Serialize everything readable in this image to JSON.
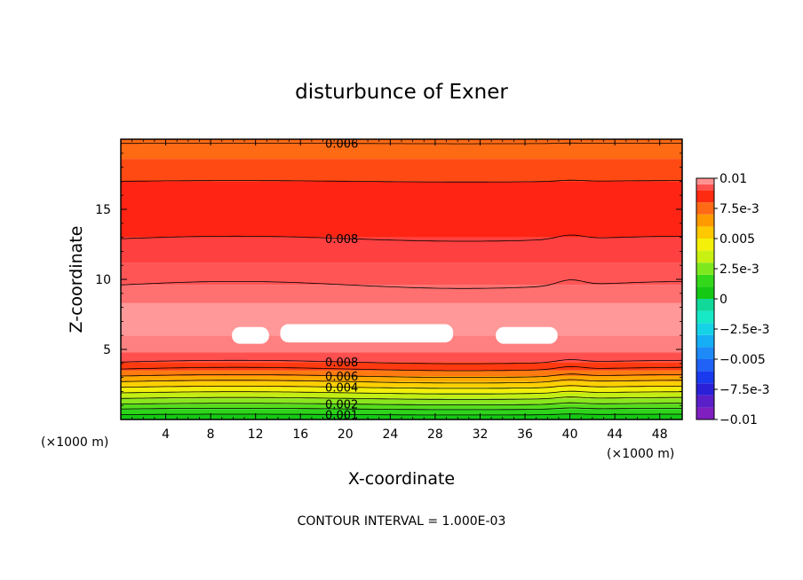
{
  "chart_data": {
    "type": "heatmap",
    "title": "disturbunce of Exner",
    "xlabel": "X-coordinate",
    "ylabel": "Z-coordinate",
    "x_unit": "(×1000 m)",
    "y_unit": "(×1000 m)",
    "xlim": [
      0,
      50
    ],
    "ylim": [
      0,
      20
    ],
    "x_ticks": [
      "4",
      "8",
      "12",
      "16",
      "20",
      "24",
      "28",
      "32",
      "36",
      "40",
      "44",
      "48"
    ],
    "y_ticks": [
      "5",
      "10",
      "15"
    ],
    "footer": "CONTOUR INTERVAL = 1.000E-03",
    "colorbar": {
      "ticks": [
        "0.01",
        "7.5e-3",
        "0.005",
        "2.5e-3",
        "0",
        "−2.5e-3",
        "−0.005",
        "−7.5e-3",
        "−0.01"
      ],
      "levels": [
        {
          "min": -0.01,
          "color": "#7f1fbf"
        },
        {
          "min": -0.009,
          "color": "#5a1fc8"
        },
        {
          "min": -0.008,
          "color": "#2a20d8"
        },
        {
          "min": -0.007,
          "color": "#1a3aee"
        },
        {
          "min": -0.006,
          "color": "#1f62f5"
        },
        {
          "min": -0.005,
          "color": "#1e8af7"
        },
        {
          "min": -0.004,
          "color": "#16aef5"
        },
        {
          "min": -0.003,
          "color": "#15d2e6"
        },
        {
          "min": -0.002,
          "color": "#17e8c6"
        },
        {
          "min": -0.001,
          "color": "#10d99a"
        },
        {
          "min": 0.0,
          "color": "#14c814"
        },
        {
          "min": 0.001,
          "color": "#34d81a"
        },
        {
          "min": 0.002,
          "color": "#7ee81e"
        },
        {
          "min": 0.003,
          "color": "#c8f012"
        },
        {
          "min": 0.004,
          "color": "#f5f00a"
        },
        {
          "min": 0.005,
          "color": "#ffc800"
        },
        {
          "min": 0.006,
          "color": "#ff9a00"
        },
        {
          "min": 0.007,
          "color": "#ff6a14"
        },
        {
          "min": 0.008,
          "color": "#ff2b10"
        },
        {
          "min": 0.009,
          "color": "#ff5050"
        },
        {
          "min": 0.0095,
          "color": "#ff9090"
        }
      ]
    },
    "bands": [
      {
        "z0": 0.0,
        "z1": 0.35,
        "color": "#14c814"
      },
      {
        "z0": 0.35,
        "z1": 0.75,
        "color": "#2ed41a"
      },
      {
        "z0": 0.75,
        "z1": 1.1,
        "color": "#55dd1c"
      },
      {
        "z0": 1.1,
        "z1": 1.5,
        "color": "#8ae61e"
      },
      {
        "z0": 1.5,
        "z1": 1.9,
        "color": "#c2ee14"
      },
      {
        "z0": 1.9,
        "z1": 2.3,
        "color": "#f2ef0a"
      },
      {
        "z0": 2.3,
        "z1": 2.7,
        "color": "#ffd000"
      },
      {
        "z0": 2.7,
        "z1": 3.1,
        "color": "#ffa800"
      },
      {
        "z0": 3.1,
        "z1": 3.5,
        "color": "#ff7a10"
      },
      {
        "z0": 3.5,
        "z1": 4.1,
        "color": "#ff3a10"
      },
      {
        "z0": 4.1,
        "z1": 4.8,
        "color": "#ff4f4f"
      },
      {
        "z0": 4.8,
        "z1": 6.0,
        "color": "#ff8080"
      },
      {
        "z0": 6.0,
        "z1": 8.3,
        "color": "#ff9898"
      },
      {
        "z0": 8.3,
        "z1": 9.6,
        "color": "#ff7070"
      },
      {
        "z0": 9.6,
        "z1": 11.2,
        "color": "#ff5555"
      },
      {
        "z0": 11.2,
        "z1": 13.0,
        "color": "#ff4040"
      },
      {
        "z0": 13.0,
        "z1": 17.0,
        "color": "#ff2414"
      },
      {
        "z0": 17.0,
        "z1": 18.6,
        "color": "#ff4a14"
      },
      {
        "z0": 18.6,
        "z1": 20.0,
        "color": "#ff6a14"
      }
    ],
    "contours": [
      {
        "z": 19.7,
        "wave": 0.02,
        "label": "0.006",
        "label_x": 18.2
      },
      {
        "z": 17.0,
        "wave": 0.05,
        "label": "",
        "label_x": 0
      },
      {
        "z": 12.9,
        "wave": 0.18,
        "label": "0.008",
        "label_x": 18.2
      },
      {
        "z": 9.6,
        "wave": 0.25,
        "label": "",
        "label_x": 0
      },
      {
        "z": 4.1,
        "wave": 0.12,
        "label": "0.008",
        "label_x": 18.2
      },
      {
        "z": 3.6,
        "wave": 0.12,
        "label": "",
        "label_x": 0
      },
      {
        "z": 3.1,
        "wave": 0.1,
        "label": "0.006",
        "label_x": 18.2
      },
      {
        "z": 2.7,
        "wave": 0.1,
        "label": "",
        "label_x": 0
      },
      {
        "z": 2.3,
        "wave": 0.08,
        "label": "0.004",
        "label_x": 18.2
      },
      {
        "z": 1.9,
        "wave": 0.08,
        "label": "",
        "label_x": 0
      },
      {
        "z": 1.5,
        "wave": 0.07,
        "label": "",
        "label_x": 0
      },
      {
        "z": 1.1,
        "wave": 0.06,
        "label": "0.002",
        "label_x": 18.2
      },
      {
        "z": 0.75,
        "wave": 0.05,
        "label": "",
        "label_x": 0
      },
      {
        "z": 0.35,
        "wave": 0.03,
        "label": "0.001",
        "label_x": 18.2
      }
    ],
    "max_regions": [
      {
        "x": [
          9.9,
          13.2
        ],
        "z": [
          5.4,
          6.6
        ]
      },
      {
        "x": [
          14.2,
          29.6
        ],
        "z": [
          5.5,
          6.8
        ]
      },
      {
        "x": [
          33.4,
          38.9
        ],
        "z": [
          5.4,
          6.6
        ]
      }
    ]
  }
}
